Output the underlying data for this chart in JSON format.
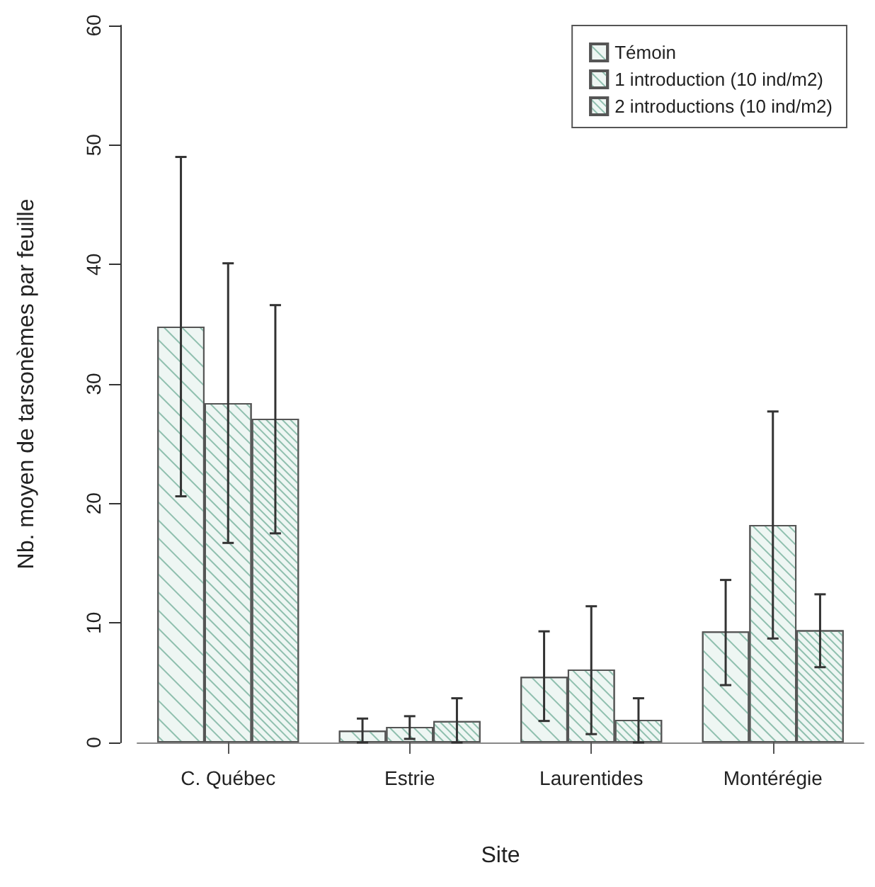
{
  "chart_data": {
    "type": "bar",
    "xlabel": "Site",
    "ylabel": "Nb. moyen de tarsonèmes par feuille",
    "categories": [
      "C. Québec",
      "Estrie",
      "Laurentides",
      "Montérégie"
    ],
    "series": [
      {
        "name": "Témoin",
        "color": "#eef6f3",
        "values": [
          34.8,
          1.0,
          5.5,
          9.3
        ],
        "errors": [
          [
            20.6,
            49.0
          ],
          [
            0.0,
            2.0
          ],
          [
            1.8,
            9.3
          ],
          [
            4.8,
            13.6
          ]
        ]
      },
      {
        "name": "1 introduction (10 ind/m2)",
        "color": "#eef6f3",
        "values": [
          28.4,
          1.3,
          6.1,
          18.2
        ],
        "errors": [
          [
            16.7,
            40.1
          ],
          [
            0.3,
            2.2
          ],
          [
            0.7,
            11.4
          ],
          [
            8.7,
            27.7
          ]
        ]
      },
      {
        "name": "2 introductions (10 ind/m2)",
        "color": "#eef6f3",
        "values": [
          27.1,
          1.8,
          1.9,
          9.4
        ],
        "errors": [
          [
            17.5,
            36.6
          ],
          [
            0.0,
            3.7
          ],
          [
            0.0,
            3.7
          ],
          [
            6.3,
            12.4
          ]
        ]
      }
    ],
    "ylim": [
      0,
      60
    ],
    "yticks": [
      0,
      10,
      20,
      30,
      40,
      50,
      60
    ],
    "grid": false,
    "legend": "top right"
  }
}
